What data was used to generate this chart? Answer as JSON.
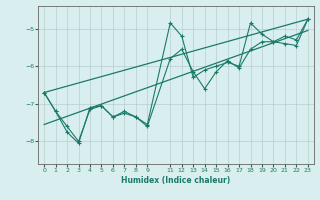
{
  "xlabel": "Humidex (Indice chaleur)",
  "bg_color": "#d9eeee",
  "grid_color": "#b0c8c8",
  "line_color": "#1a7a6a",
  "xlim": [
    -0.5,
    23.5
  ],
  "ylim": [
    -8.6,
    -4.4
  ],
  "yticks": [
    -8,
    -7,
    -6,
    -5
  ],
  "xticks": [
    0,
    1,
    2,
    3,
    4,
    5,
    6,
    7,
    8,
    9,
    11,
    12,
    13,
    14,
    15,
    16,
    17,
    18,
    19,
    20,
    21,
    22,
    23
  ],
  "series": [
    {
      "x": [
        0,
        1,
        2,
        3,
        4,
        5,
        6,
        7,
        8,
        9,
        11,
        12,
        13,
        14,
        15,
        16,
        17,
        18,
        19,
        20,
        21,
        22,
        23
      ],
      "y": [
        -6.7,
        -7.2,
        -7.6,
        -8.0,
        -7.15,
        -7.05,
        -7.35,
        -7.2,
        -7.35,
        -7.6,
        -5.8,
        -5.55,
        -6.15,
        -6.6,
        -6.15,
        -5.85,
        -6.05,
        -5.55,
        -5.35,
        -5.35,
        -5.2,
        -5.3,
        -4.75
      ]
    },
    {
      "x": [
        0,
        1,
        2,
        3,
        4,
        5,
        6,
        7,
        8,
        9,
        11,
        12,
        13,
        14,
        15,
        16,
        17,
        18,
        19,
        20,
        21,
        22,
        23
      ],
      "y": [
        -6.7,
        -7.2,
        -7.75,
        -8.05,
        -7.1,
        -7.05,
        -7.35,
        -7.25,
        -7.35,
        -7.55,
        -4.85,
        -5.2,
        -6.3,
        -6.1,
        -6.0,
        -5.9,
        -6.0,
        -4.85,
        -5.15,
        -5.35,
        -5.4,
        -5.45,
        -4.75
      ]
    },
    {
      "x": [
        0,
        23
      ],
      "y": [
        -6.7,
        -4.75
      ]
    },
    {
      "x": [
        0,
        23
      ],
      "y": [
        -7.55,
        -5.05
      ]
    }
  ]
}
